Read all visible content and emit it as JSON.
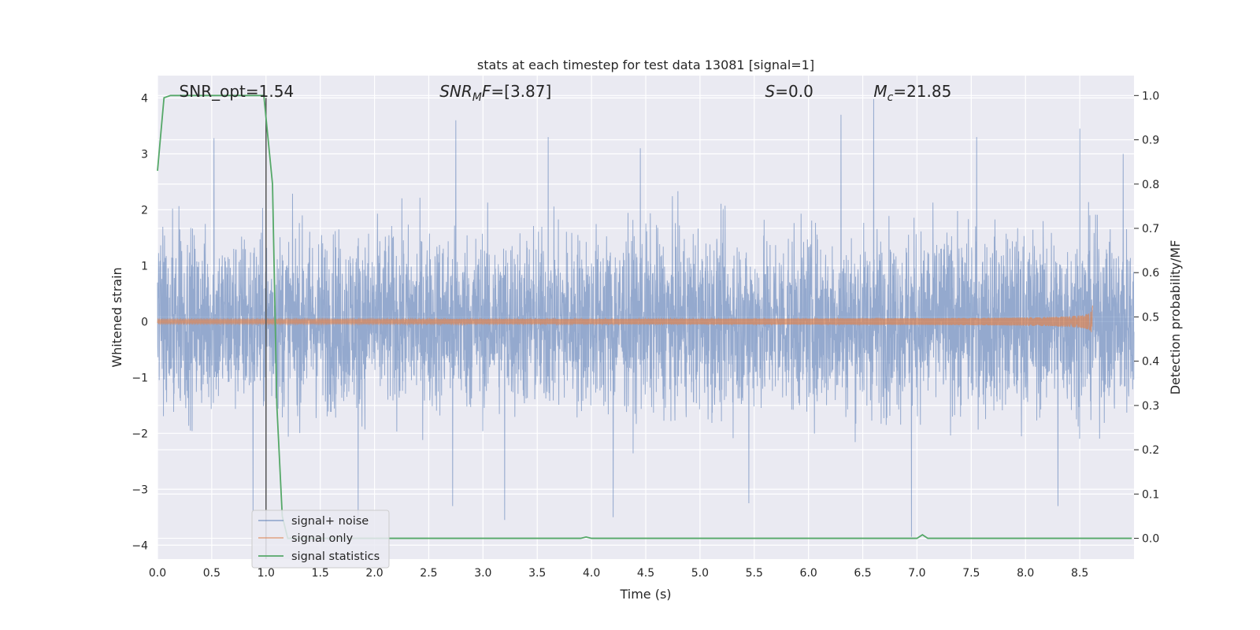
{
  "chart_data": {
    "type": "line",
    "title": "stats at each timestep for test data 13081 [signal=1]",
    "xlabel": "Time (s)",
    "ylabel": "Whitened strain",
    "y2label": "Detection probability/MF",
    "xlim": [
      0.0,
      9.0
    ],
    "ylim": [
      -4.25,
      4.4
    ],
    "y2lim": [
      -0.047,
      1.045
    ],
    "xticks": [
      "0.0",
      "0.5",
      "1.0",
      "1.5",
      "2.0",
      "2.5",
      "3.0",
      "3.5",
      "4.0",
      "4.5",
      "5.0",
      "5.5",
      "6.0",
      "6.5",
      "7.0",
      "7.5",
      "8.0",
      "8.5"
    ],
    "yticks": [
      "4",
      "3",
      "2",
      "1",
      "0",
      "−1",
      "−2",
      "−3",
      "−4"
    ],
    "y2ticks": [
      "1.0",
      "0.9",
      "0.8",
      "0.7",
      "0.6",
      "0.5",
      "0.4",
      "0.3",
      "0.2",
      "0.1",
      "0.0"
    ],
    "grid": true,
    "legend_position": "lower-left",
    "vline_x": 1.0,
    "annotations": [
      {
        "name": "snr-opt",
        "prefix": "SNR_opt=",
        "value": "1.54",
        "x": 0.2
      },
      {
        "name": "snr-mf",
        "prefix": "SNR",
        "sub": "M",
        "suffix": "F=",
        "value": "[3.87]",
        "x": 2.6
      },
      {
        "name": "s-stat",
        "prefix": "S",
        "suffix": "=",
        "value": "0.0",
        "x": 5.6
      },
      {
        "name": "chirp-mass",
        "prefix": "M",
        "sub": "c",
        "suffix": "=",
        "value": "21.85",
        "x": 6.6
      }
    ],
    "series": [
      {
        "name": "signal+ noise",
        "color": "#4c72b0",
        "axis": "left",
        "noise_envelope": {
          "upper_typical": 1.7,
          "lower_typical": -1.7,
          "max": 4.0,
          "min": -3.9
        },
        "peaks": [
          [
            0.52,
            3.28
          ],
          [
            1.0,
            3.9
          ],
          [
            2.75,
            3.6
          ],
          [
            3.6,
            3.3
          ],
          [
            4.45,
            3.1
          ],
          [
            6.3,
            3.7
          ],
          [
            6.6,
            3.98
          ],
          [
            7.55,
            3.3
          ],
          [
            8.5,
            3.45
          ],
          [
            8.9,
            3.0
          ],
          [
            0.88,
            -3.4
          ],
          [
            1.0,
            -3.6
          ],
          [
            1.85,
            -3.5
          ],
          [
            2.72,
            -3.3
          ],
          [
            3.2,
            -3.55
          ],
          [
            4.2,
            -3.5
          ],
          [
            5.45,
            -3.25
          ],
          [
            6.95,
            -3.85
          ],
          [
            8.3,
            -3.3
          ]
        ]
      },
      {
        "name": "signal only",
        "color": "#dd8452",
        "axis": "left",
        "chirp": {
          "start": 0.0,
          "peak_time": 8.62,
          "peak_amplitude": 0.3
        }
      },
      {
        "name": "signal statistics",
        "color": "#55a868",
        "axis": "right",
        "x": [
          0.0,
          0.06,
          0.12,
          0.5,
          0.98,
          1.06,
          1.1,
          1.15,
          1.2,
          2.0,
          3.9,
          3.95,
          4.0,
          5.9,
          6.0,
          7.0,
          7.05,
          7.1,
          7.2,
          8.98
        ],
        "values": [
          0.83,
          0.995,
          1.0,
          1.0,
          1.0,
          0.8,
          0.3,
          0.05,
          0.0,
          0.0,
          0.0,
          0.003,
          0.0,
          0.0,
          0.0,
          0.0,
          0.008,
          0.0,
          0.0,
          0.0
        ]
      }
    ]
  }
}
